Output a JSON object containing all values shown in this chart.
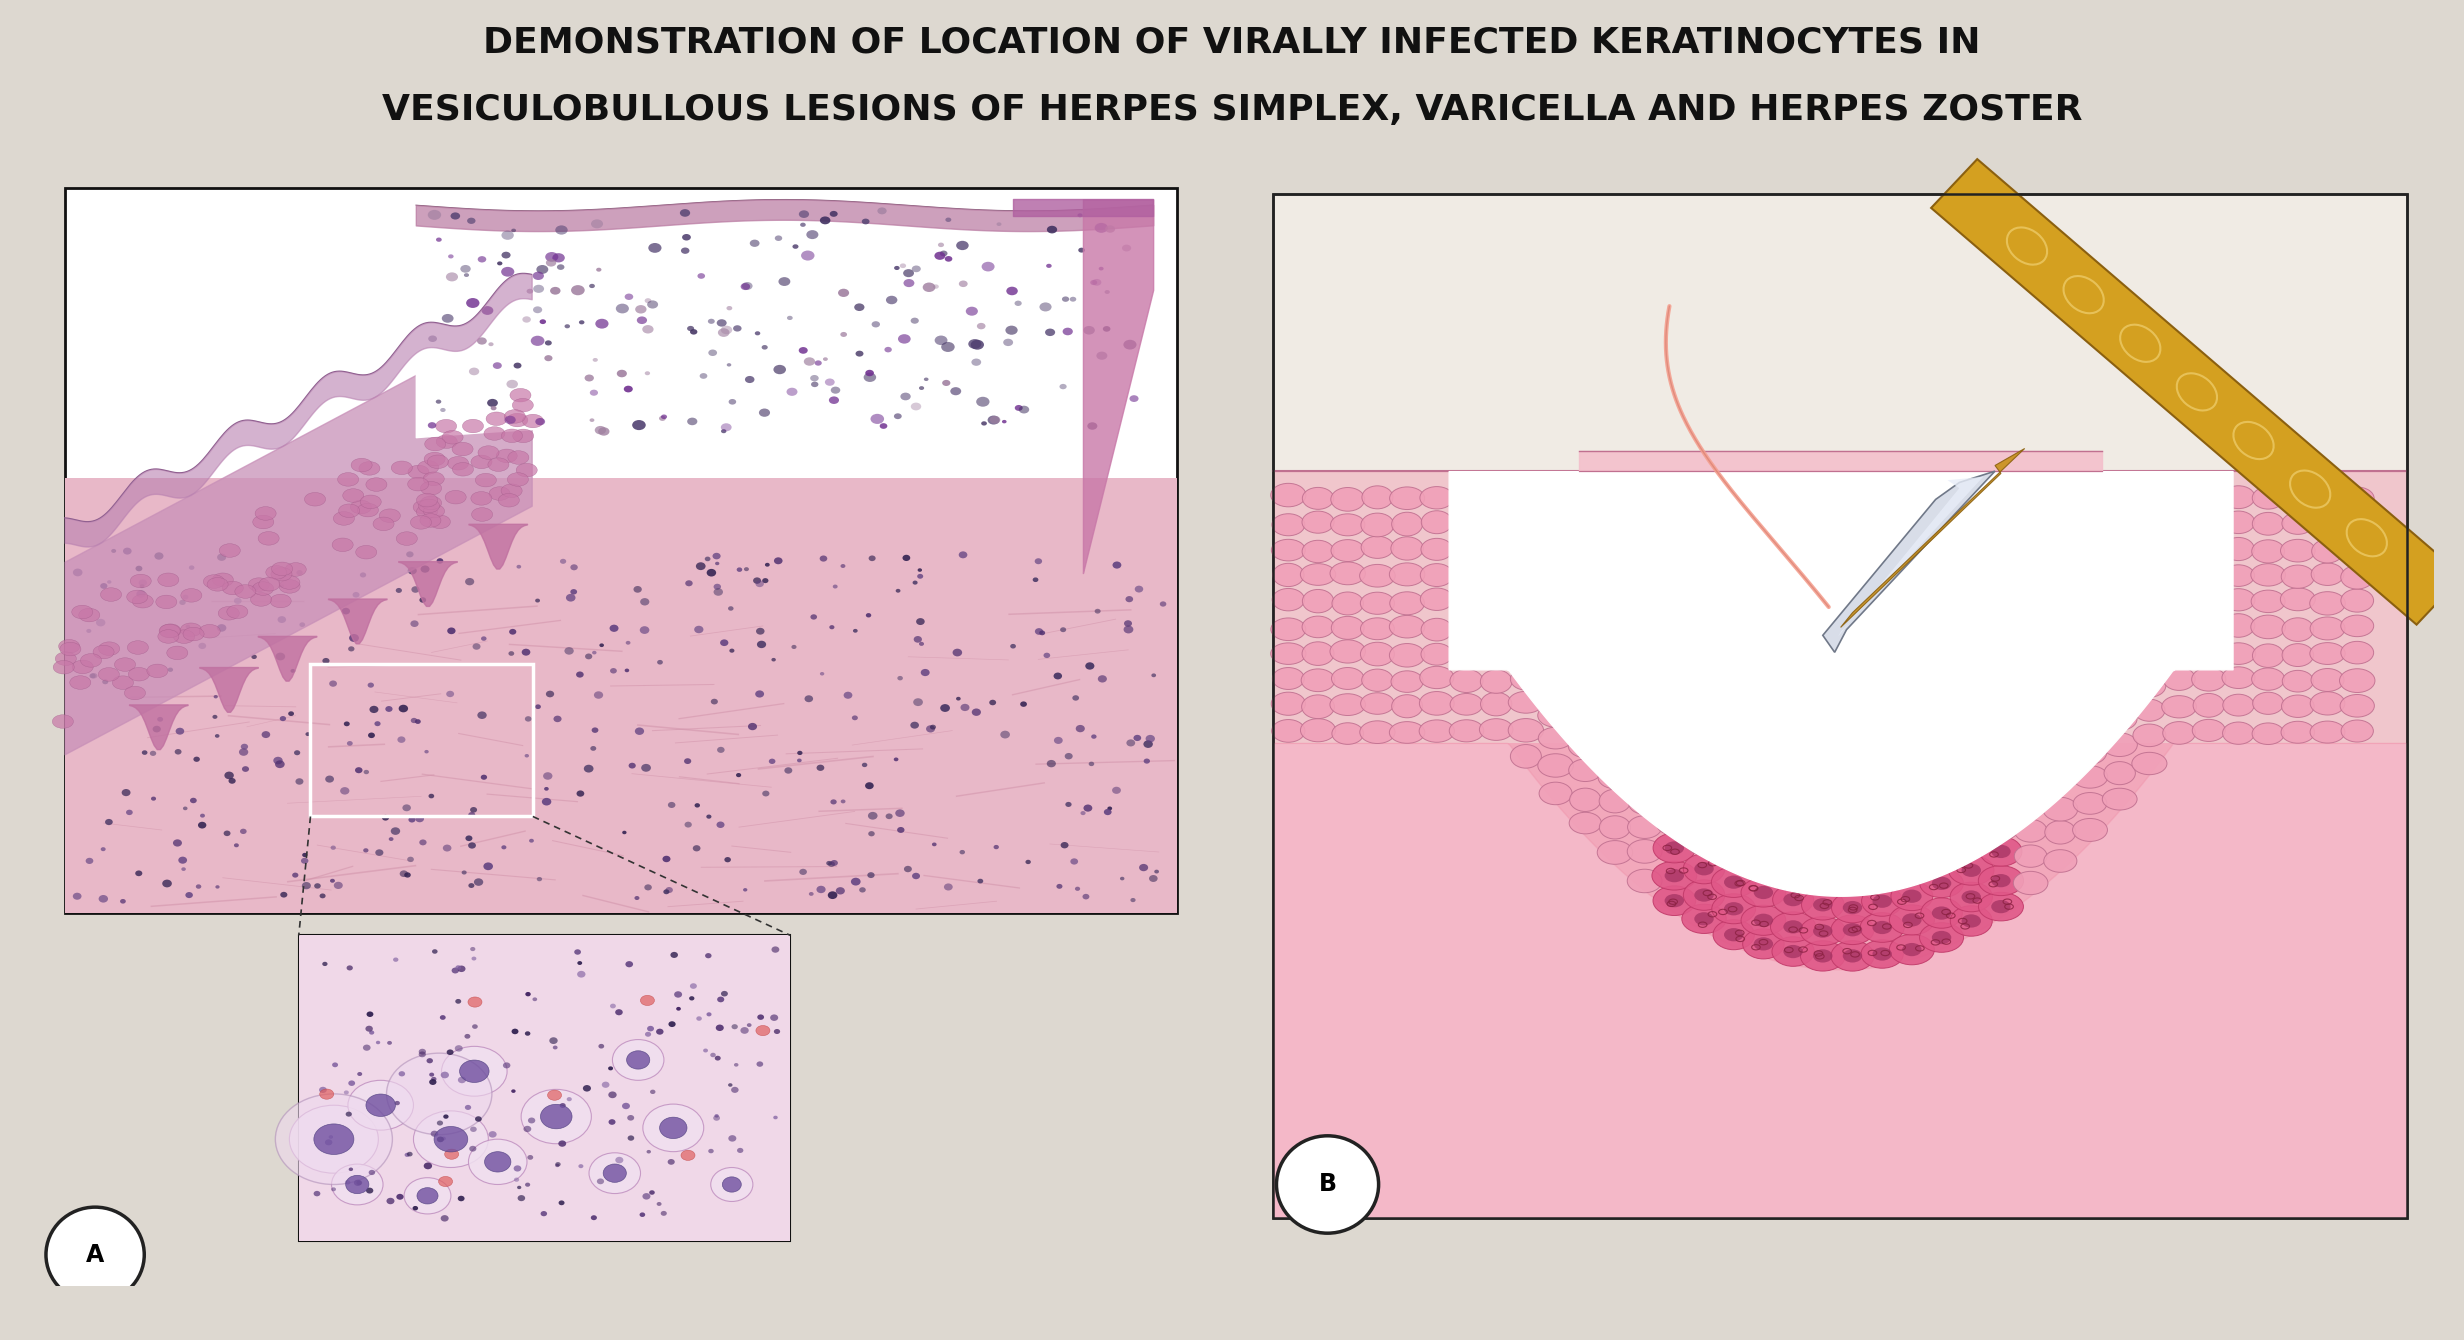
{
  "title_line1": "DEMONSTRATION OF LOCATION OF VIRALLY INFECTED KERATINOCYTES IN",
  "title_line2": "VESICULOBULLOUS LESIONS OF HERPES SIMPLEX, VARICELLA AND HERPES ZOSTER",
  "header_bg_color": "#6BAED6",
  "body_bg_color": "#DDD8D0",
  "panel_bg_color": "#EDE8E0",
  "title_color": "#111111",
  "title_fontsize": 26,
  "label_A": "A",
  "label_B": "B",
  "panel_border_color": "#222222",
  "figsize": [
    24.64,
    13.4
  ],
  "dpi": 100
}
